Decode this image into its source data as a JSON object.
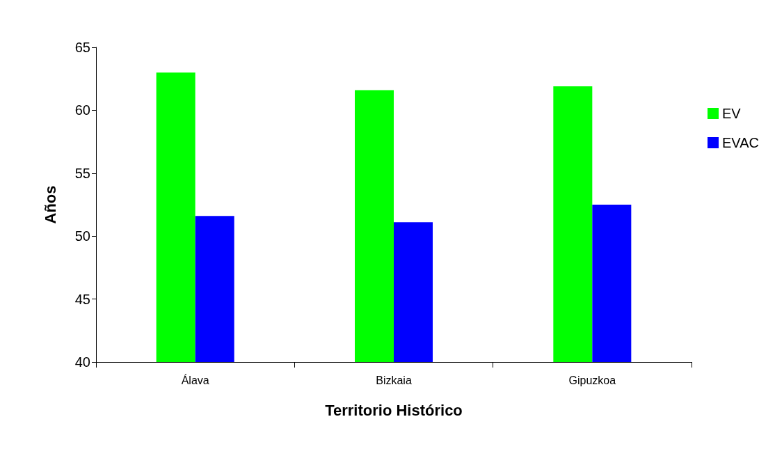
{
  "chart_data": {
    "type": "bar",
    "xlabel": "Territorio Histórico",
    "ylabel": "Años",
    "categories": [
      "Álava",
      "Bizkaia",
      "Gipuzkoa"
    ],
    "series": [
      {
        "name": "EV",
        "color": "#00ff00",
        "values": [
          63.0,
          61.6,
          61.9
        ]
      },
      {
        "name": "EVAC",
        "color": "#0000ff",
        "values": [
          51.6,
          51.1,
          52.5
        ]
      }
    ],
    "ylim": [
      40,
      65
    ],
    "yticks": [
      40,
      45,
      50,
      55,
      60,
      65
    ],
    "grid": false,
    "legend": "top right"
  }
}
